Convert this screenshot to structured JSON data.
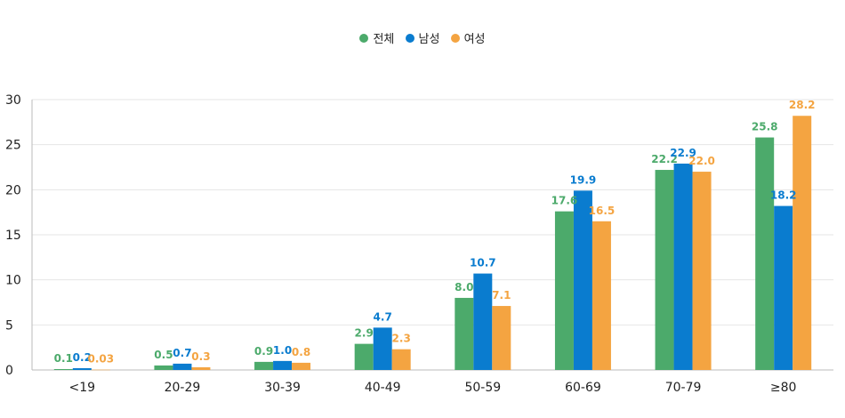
{
  "chart_data": {
    "type": "bar",
    "categories": [
      "<19",
      "20-29",
      "30-39",
      "40-49",
      "50-59",
      "60-69",
      "70-79",
      "≥80"
    ],
    "series": [
      {
        "name": "전체",
        "color": "#4caa6b",
        "values": [
          0.1,
          0.5,
          0.9,
          2.9,
          8.0,
          17.6,
          22.2,
          25.8
        ],
        "labels": [
          "0.1",
          "0.5",
          "0.9",
          "2.9",
          "8.0",
          "17.6",
          "22.2",
          "25.8"
        ]
      },
      {
        "name": "남성",
        "color": "#0a7ccf",
        "values": [
          0.2,
          0.7,
          1.0,
          4.7,
          10.7,
          19.9,
          22.9,
          18.2
        ],
        "labels": [
          "0.2",
          "0.7",
          "1.0",
          "4.7",
          "10.7",
          "19.9",
          "22.9",
          "18.2"
        ]
      },
      {
        "name": "여성",
        "color": "#f4a441",
        "values": [
          0.03,
          0.3,
          0.8,
          2.3,
          7.1,
          16.5,
          22.0,
          28.2
        ],
        "labels": [
          "0.03",
          "0.3",
          "0.8",
          "2.3",
          "7.1",
          "16.5",
          "22.0",
          "28.2"
        ]
      }
    ],
    "y_ticks": [
      "0",
      "5",
      "10",
      "15",
      "20",
      "25",
      "30"
    ],
    "ylim": [
      0,
      30
    ],
    "grid": true,
    "legend_position": "top-center"
  }
}
